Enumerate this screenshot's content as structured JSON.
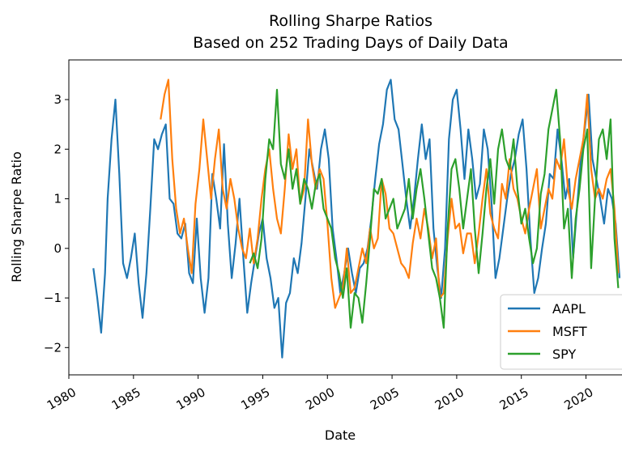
{
  "chart_data": {
    "type": "line",
    "title": "Rolling Sharpe Ratios",
    "subtitle": "Based on 252 Trading Days of  Daily Data",
    "xlabel": "Date",
    "ylabel": "Rolling Sharpe Ratio",
    "xlim": [
      1980.0,
      2023.6
    ],
    "ylim": [
      -2.55,
      3.8
    ],
    "x_ticks": [
      1980,
      1985,
      1990,
      1995,
      2000,
      2005,
      2010,
      2015,
      2020
    ],
    "x_tick_labels": [
      "1980",
      "1985",
      "1990",
      "1995",
      "2000",
      "2005",
      "2010",
      "2015",
      "2020"
    ],
    "y_ticks": [
      -2,
      -1,
      0,
      1,
      2,
      3
    ],
    "y_tick_labels": [
      "−2",
      "−1",
      "0",
      "1",
      "2",
      "3"
    ],
    "grid": false,
    "legend_position": "bottom-right",
    "series": [
      {
        "name": "AAPL",
        "color": "#1f77b4",
        "x": [
          1981.9,
          1982.2,
          1982.5,
          1982.8,
          1983.0,
          1983.3,
          1983.6,
          1983.9,
          1984.2,
          1984.5,
          1984.8,
          1985.1,
          1985.4,
          1985.7,
          1986.0,
          1986.3,
          1986.6,
          1986.9,
          1987.2,
          1987.5,
          1987.8,
          1988.1,
          1988.4,
          1988.7,
          1989.0,
          1989.3,
          1989.6,
          1989.9,
          1990.2,
          1990.5,
          1990.8,
          1991.1,
          1991.4,
          1991.7,
          1992.0,
          1992.3,
          1992.6,
          1992.9,
          1993.2,
          1993.5,
          1993.8,
          1994.1,
          1994.4,
          1994.7,
          1995.0,
          1995.3,
          1995.6,
          1995.9,
          1996.2,
          1996.5,
          1996.8,
          1997.1,
          1997.4,
          1997.7,
          1998.0,
          1998.3,
          1998.6,
          1998.9,
          1999.2,
          1999.5,
          1999.8,
          2000.1,
          2000.4,
          2000.7,
          2001.0,
          2001.3,
          2001.6,
          2001.9,
          2002.2,
          2002.5,
          2002.8,
          2003.1,
          2003.4,
          2003.7,
          2004.0,
          2004.3,
          2004.6,
          2004.9,
          2005.2,
          2005.5,
          2005.8,
          2006.1,
          2006.4,
          2006.7,
          2007.0,
          2007.3,
          2007.6,
          2007.9,
          2008.2,
          2008.5,
          2008.8,
          2009.1,
          2009.4,
          2009.7,
          2010.0,
          2010.3,
          2010.6,
          2010.9,
          2011.2,
          2011.5,
          2011.8,
          2012.1,
          2012.4,
          2012.7,
          2013.0,
          2013.3,
          2013.6,
          2013.9,
          2014.2,
          2014.5,
          2014.8,
          2015.1,
          2015.4,
          2015.7,
          2016.0,
          2016.3,
          2016.6,
          2016.9,
          2017.2,
          2017.5,
          2017.8,
          2018.1,
          2018.4,
          2018.7,
          2019.0,
          2019.3,
          2019.6,
          2019.9,
          2020.2,
          2020.5,
          2020.8,
          2021.1,
          2021.4,
          2021.7,
          2022.0,
          2022.3,
          2022.6
        ],
        "y": [
          -0.4,
          -1.0,
          -1.7,
          -0.5,
          1.0,
          2.2,
          3.0,
          1.5,
          -0.3,
          -0.6,
          -0.2,
          0.3,
          -0.7,
          -1.4,
          -0.5,
          0.8,
          2.2,
          2.0,
          2.3,
          2.5,
          1.0,
          0.9,
          0.3,
          0.2,
          0.5,
          -0.5,
          -0.7,
          0.6,
          -0.6,
          -1.3,
          -0.6,
          1.5,
          1.0,
          0.4,
          2.1,
          0.5,
          -0.6,
          0.1,
          1.0,
          -0.2,
          -1.3,
          -0.7,
          -0.2,
          0.3,
          0.6,
          -0.2,
          -0.6,
          -1.2,
          -1.0,
          -2.2,
          -1.1,
          -0.9,
          -0.2,
          -0.5,
          0.1,
          1.0,
          2.0,
          1.6,
          1.2,
          2.0,
          2.4,
          1.8,
          0.4,
          -0.2,
          -0.9,
          -0.5,
          0.0,
          -0.5,
          -0.9,
          -0.4,
          -0.3,
          0.0,
          0.6,
          1.4,
          2.1,
          2.5,
          3.2,
          3.4,
          2.6,
          2.4,
          1.7,
          1.0,
          0.4,
          1.0,
          1.8,
          2.5,
          1.8,
          2.2,
          0.4,
          -0.4,
          -1.0,
          0.0,
          2.2,
          3.0,
          3.2,
          2.4,
          1.4,
          2.4,
          1.8,
          1.0,
          1.3,
          2.4,
          2.0,
          0.9,
          -0.6,
          -0.2,
          0.4,
          1.0,
          1.5,
          1.8,
          2.3,
          2.6,
          1.6,
          0.2,
          -0.9,
          -0.6,
          0.0,
          0.5,
          1.5,
          1.4,
          2.4,
          1.8,
          1.0,
          1.4,
          -0.2,
          0.8,
          1.8,
          2.4,
          3.1,
          1.8,
          1.4,
          1.0,
          0.5,
          1.2,
          1.0,
          0.5,
          -0.6
        ]
      },
      {
        "name": "MSFT",
        "color": "#ff7f0e",
        "x": [
          1987.1,
          1987.4,
          1987.7,
          1988.0,
          1988.3,
          1988.6,
          1988.9,
          1989.2,
          1989.5,
          1989.8,
          1990.1,
          1990.4,
          1990.7,
          1991.0,
          1991.3,
          1991.6,
          1991.9,
          1992.2,
          1992.5,
          1992.8,
          1993.1,
          1993.4,
          1993.7,
          1994.0,
          1994.3,
          1994.6,
          1994.9,
          1995.2,
          1995.5,
          1995.8,
          1996.1,
          1996.4,
          1996.7,
          1997.0,
          1997.3,
          1997.6,
          1997.9,
          1998.2,
          1998.5,
          1998.8,
          1999.1,
          1999.4,
          1999.7,
          2000.0,
          2000.3,
          2000.6,
          2000.9,
          2001.2,
          2001.5,
          2001.8,
          2002.1,
          2002.4,
          2002.7,
          2003.0,
          2003.3,
          2003.6,
          2003.9,
          2004.2,
          2004.5,
          2004.8,
          2005.1,
          2005.4,
          2005.7,
          2006.0,
          2006.3,
          2006.6,
          2006.9,
          2007.2,
          2007.5,
          2007.8,
          2008.1,
          2008.4,
          2008.7,
          2009.0,
          2009.3,
          2009.6,
          2009.9,
          2010.2,
          2010.5,
          2010.8,
          2011.1,
          2011.4,
          2011.7,
          2012.0,
          2012.3,
          2012.6,
          2012.9,
          2013.2,
          2013.5,
          2013.8,
          2014.1,
          2014.4,
          2014.7,
          2015.0,
          2015.3,
          2015.6,
          2015.9,
          2016.2,
          2016.5,
          2016.8,
          2017.1,
          2017.4,
          2017.7,
          2018.0,
          2018.3,
          2018.6,
          2018.9,
          2019.2,
          2019.5,
          2019.8,
          2020.1,
          2020.4,
          2020.7,
          2021.0,
          2021.3,
          2021.6,
          2021.9,
          2022.2,
          2022.5
        ],
        "y": [
          2.6,
          3.1,
          3.4,
          1.8,
          0.8,
          0.3,
          0.6,
          0.0,
          -0.5,
          0.9,
          1.6,
          2.6,
          1.8,
          1.0,
          1.8,
          2.4,
          1.2,
          0.8,
          1.4,
          1.0,
          0.4,
          0.0,
          -0.2,
          0.4,
          -0.3,
          0.2,
          1.0,
          1.6,
          2.0,
          1.2,
          0.6,
          0.3,
          1.2,
          2.3,
          1.6,
          2.0,
          0.9,
          1.2,
          2.6,
          1.7,
          1.2,
          1.6,
          1.4,
          0.5,
          -0.6,
          -1.2,
          -1.0,
          -0.8,
          0.0,
          -0.9,
          -0.8,
          -0.4,
          0.0,
          -0.3,
          0.4,
          0.0,
          0.2,
          1.4,
          1.1,
          0.4,
          0.3,
          0.0,
          -0.3,
          -0.4,
          -0.6,
          0.1,
          0.6,
          0.2,
          0.8,
          0.4,
          -0.2,
          0.2,
          -1.0,
          -0.9,
          0.2,
          1.0,
          0.4,
          0.5,
          -0.1,
          0.3,
          0.3,
          -0.3,
          0.3,
          1.0,
          1.6,
          0.7,
          0.4,
          0.2,
          1.3,
          1.0,
          1.8,
          1.2,
          1.0,
          0.6,
          0.3,
          0.8,
          1.2,
          1.6,
          0.4,
          0.8,
          1.2,
          1.0,
          1.8,
          1.6,
          2.2,
          1.2,
          0.8,
          1.4,
          1.8,
          2.2,
          3.1,
          1.6,
          1.0,
          1.2,
          1.0,
          1.4,
          1.6,
          0.8,
          -0.5
        ]
      },
      {
        "name": "SPY",
        "color": "#2ca02c",
        "x": [
          1994.0,
          1994.3,
          1994.6,
          1994.9,
          1995.2,
          1995.5,
          1995.8,
          1996.1,
          1996.4,
          1996.7,
          1997.0,
          1997.3,
          1997.6,
          1997.9,
          1998.2,
          1998.5,
          1998.8,
          1999.1,
          1999.4,
          1999.7,
          2000.0,
          2000.3,
          2000.6,
          2000.9,
          2001.2,
          2001.5,
          2001.8,
          2002.1,
          2002.4,
          2002.7,
          2003.0,
          2003.3,
          2003.6,
          2003.9,
          2004.2,
          2004.5,
          2004.8,
          2005.1,
          2005.4,
          2005.7,
          2006.0,
          2006.3,
          2006.6,
          2006.9,
          2007.2,
          2007.5,
          2007.8,
          2008.1,
          2008.4,
          2008.7,
          2009.0,
          2009.3,
          2009.6,
          2009.9,
          2010.2,
          2010.5,
          2010.8,
          2011.1,
          2011.4,
          2011.7,
          2012.0,
          2012.3,
          2012.6,
          2012.9,
          2013.2,
          2013.5,
          2013.8,
          2014.1,
          2014.4,
          2014.7,
          2015.0,
          2015.3,
          2015.6,
          2015.9,
          2016.2,
          2016.5,
          2016.8,
          2017.1,
          2017.4,
          2017.7,
          2018.0,
          2018.3,
          2018.6,
          2018.9,
          2019.2,
          2019.5,
          2019.8,
          2020.1,
          2020.4,
          2020.7,
          2021.0,
          2021.3,
          2021.6,
          2021.9,
          2022.2,
          2022.5
        ],
        "y": [
          -0.3,
          -0.1,
          -0.4,
          0.2,
          1.4,
          2.2,
          2.0,
          3.2,
          1.7,
          1.4,
          2.0,
          1.2,
          1.6,
          0.9,
          1.4,
          1.2,
          0.8,
          1.3,
          1.5,
          0.8,
          0.6,
          0.4,
          -0.2,
          -0.5,
          -1.0,
          -0.4,
          -1.6,
          -0.9,
          -1.0,
          -1.5,
          -0.7,
          0.2,
          1.2,
          1.1,
          1.4,
          0.6,
          0.8,
          1.0,
          0.4,
          0.6,
          0.8,
          1.4,
          0.6,
          1.2,
          1.6,
          1.0,
          0.3,
          -0.4,
          -0.6,
          -1.0,
          -1.6,
          0.4,
          1.6,
          1.8,
          1.2,
          0.4,
          1.0,
          1.6,
          0.4,
          -0.5,
          0.3,
          1.2,
          1.8,
          0.9,
          2.0,
          2.4,
          1.8,
          1.6,
          2.2,
          1.2,
          0.5,
          0.8,
          0.2,
          -0.3,
          0.0,
          1.1,
          1.5,
          2.4,
          2.8,
          3.2,
          2.2,
          0.4,
          0.8,
          -0.6,
          0.6,
          1.2,
          2.0,
          2.4,
          -0.4,
          1.0,
          2.2,
          2.4,
          1.8,
          2.6,
          0.2,
          -0.8
        ]
      }
    ]
  }
}
